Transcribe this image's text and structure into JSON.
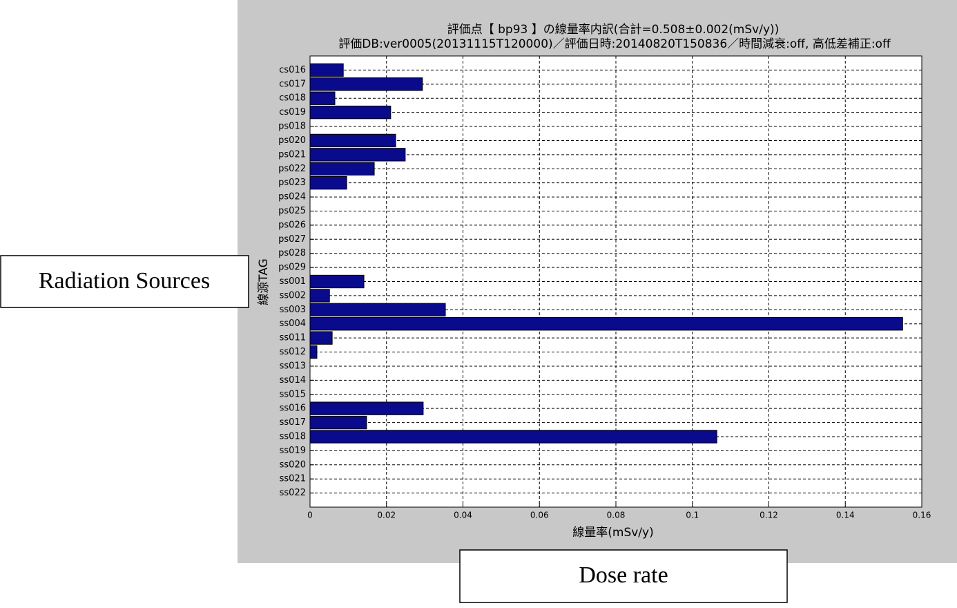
{
  "chart_data": {
    "type": "barh",
    "title": "評価点【 bp93 】の線量率内訳(合計=0.508±0.002(mSv/y))",
    "subtitle": "評価DB:ver0005(20131115T120000)／評価日時:20140820T150836／時間減衰:off, 高低差補正:off",
    "x_label": "線量率(mSv/y)",
    "y_label": "線源TAG",
    "categories": [
      "cs016",
      "cs017",
      "cs018",
      "cs019",
      "ps018",
      "ps020",
      "ps021",
      "ps022",
      "ps023",
      "ps024",
      "ps025",
      "ps026",
      "ps027",
      "ps028",
      "ps029",
      "ss001",
      "ss002",
      "ss003",
      "ss004",
      "ss011",
      "ss012",
      "ss013",
      "ss014",
      "ss015",
      "ss016",
      "ss017",
      "ss018",
      "ss019",
      "ss020",
      "ss021",
      "ss022"
    ],
    "values": [
      0.0087,
      0.0294,
      0.0065,
      0.0211,
      0,
      0.0224,
      0.0249,
      0.0168,
      0.0096,
      0,
      0,
      0,
      0,
      0,
      0,
      0.0141,
      0.0051,
      0.0354,
      0.155,
      0.0058,
      0.0018,
      0,
      0,
      0,
      0.0296,
      0.0148,
      0.1064,
      0,
      0,
      0,
      0
    ],
    "color": "#0a0a8c",
    "xlim": [
      0,
      0.16
    ],
    "xticks": [
      0,
      0.02,
      0.04,
      0.06,
      0.08,
      0.1,
      0.12,
      0.14,
      0.16
    ],
    "grid": true,
    "annotations": [
      "Radiation Sources",
      "Dose rate"
    ]
  }
}
